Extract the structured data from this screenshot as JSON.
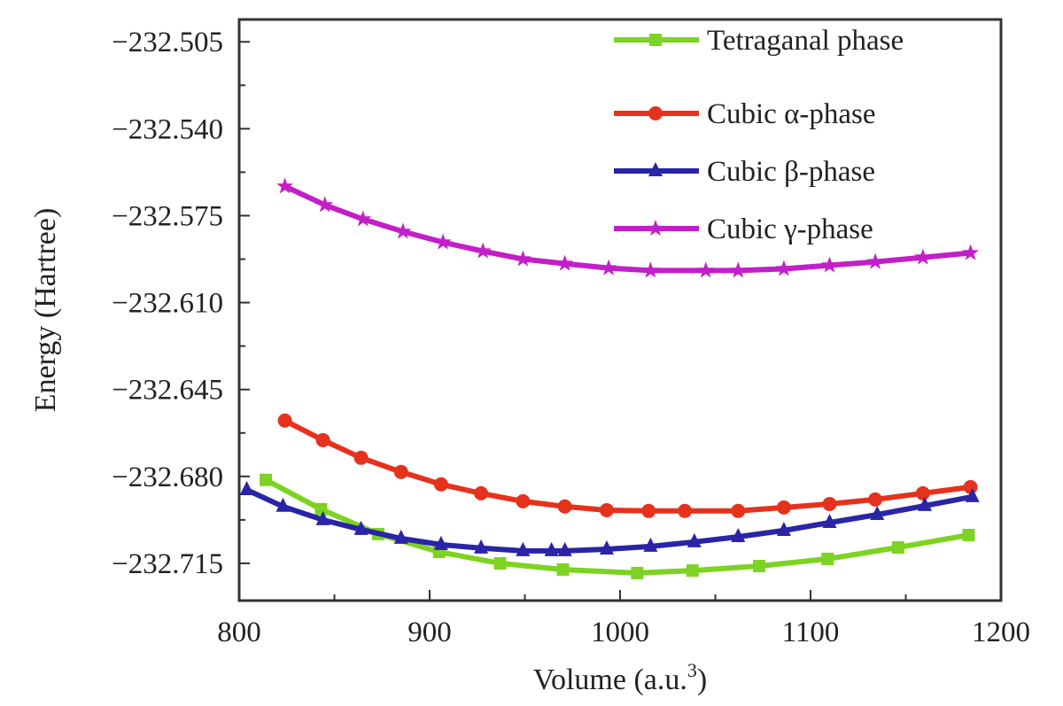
{
  "chart_data": {
    "type": "line",
    "title": "",
    "xlabel": "Volume (a.u.",
    "xlabel_sup": "3",
    "xlabel_end": ")",
    "ylabel": "Energy (Hartree)",
    "xlim": [
      800,
      1200
    ],
    "ylim": [
      -232.73,
      -232.496
    ],
    "xticks": [
      800,
      900,
      1000,
      1100,
      1200
    ],
    "xtick_labels": [
      "800",
      "900",
      "1000",
      "1100",
      "1200"
    ],
    "yticks": [
      -232.505,
      -232.54,
      -232.575,
      -232.61,
      -232.645,
      -232.68,
      -232.715
    ],
    "ytick_labels": [
      "−232.505",
      "−232.540",
      "−232.575",
      "−232.610",
      "−232.645",
      "−232.680",
      "−232.715"
    ],
    "grid": false,
    "legend_position": "top-right",
    "series": [
      {
        "name": "Tetraganal phase",
        "color": "#7dd321",
        "marker": "square",
        "x": [
          814,
          843,
          873,
          905,
          937,
          970,
          1009,
          1038,
          1073,
          1109,
          1146,
          1183
        ],
        "y": [
          -232.6814,
          -232.6932,
          -232.7032,
          -232.7104,
          -232.715,
          -232.7175,
          -232.7189,
          -232.7179,
          -232.7161,
          -232.7132,
          -232.7086,
          -232.7036
        ]
      },
      {
        "name": "Cubic α-phase",
        "color": "#e5321c",
        "marker": "circle",
        "x": [
          824,
          844,
          864,
          885,
          906,
          927,
          949,
          971,
          993,
          1015,
          1034,
          1062,
          1086,
          1110,
          1134,
          1159,
          1184
        ],
        "y": [
          -232.6575,
          -232.6654,
          -232.6725,
          -232.6782,
          -232.6832,
          -232.6868,
          -232.69,
          -232.6921,
          -232.6936,
          -232.6939,
          -232.6939,
          -232.6939,
          -232.6925,
          -232.6911,
          -232.6893,
          -232.6868,
          -232.6843
        ]
      },
      {
        "name": "Cubic β-phase",
        "color": "#2a24a8",
        "marker": "triangle",
        "x": [
          804,
          823,
          844,
          864,
          885,
          906,
          927,
          949,
          964,
          971,
          993,
          1016,
          1039,
          1062,
          1086,
          1110,
          1135,
          1160,
          1185
        ],
        "y": [
          -232.6854,
          -232.6921,
          -232.6975,
          -232.7014,
          -232.705,
          -232.7075,
          -232.7089,
          -232.71,
          -232.71,
          -232.71,
          -232.7093,
          -232.7082,
          -232.7064,
          -232.7043,
          -232.7018,
          -232.6986,
          -232.6954,
          -232.6918,
          -232.6882
        ]
      },
      {
        "name": "Cubic γ-phase",
        "color": "#c21fc8",
        "marker": "star",
        "x": [
          824,
          845,
          865,
          886,
          907,
          928,
          949,
          971,
          994,
          1016,
          1045,
          1062,
          1086,
          1110,
          1134,
          1159,
          1184
        ],
        "y": [
          -232.5632,
          -232.5707,
          -232.5764,
          -232.5814,
          -232.5857,
          -232.5893,
          -232.5925,
          -232.5943,
          -232.5961,
          -232.5971,
          -232.5971,
          -232.5971,
          -232.5964,
          -232.595,
          -232.5936,
          -232.5918,
          -232.59
        ]
      }
    ]
  }
}
